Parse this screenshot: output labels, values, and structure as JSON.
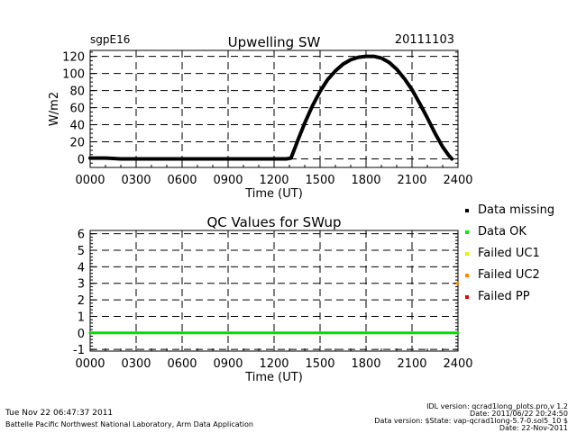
{
  "chart_data": [
    {
      "type": "line",
      "site_label": "sgpE16",
      "title": "Upwelling SW",
      "date_label": "20111103",
      "xlabel": "Time (UT)",
      "ylabel": "W/m2",
      "xlim": [
        0,
        24
      ],
      "ylim": [
        -10,
        127
      ],
      "x_ticks": [
        "0000",
        "0300",
        "0600",
        "0900",
        "1200",
        "1500",
        "1800",
        "2100",
        "2400"
      ],
      "y_ticks": [
        "0",
        "20",
        "40",
        "60",
        "80",
        "100",
        "120"
      ],
      "grid": true,
      "series": [
        {
          "color": "#000000",
          "points": [
            [
              0.0,
              1
            ],
            [
              1.0,
              1
            ],
            [
              2.0,
              0
            ],
            [
              4.0,
              0
            ],
            [
              6.0,
              0
            ],
            [
              8.0,
              0
            ],
            [
              10.0,
              0
            ],
            [
              12.0,
              0
            ],
            [
              12.8,
              0
            ],
            [
              13.1,
              1
            ],
            [
              13.3,
              10
            ],
            [
              13.6,
              24
            ],
            [
              14.0,
              42
            ],
            [
              14.5,
              62
            ],
            [
              15.0,
              79
            ],
            [
              15.5,
              93
            ],
            [
              16.0,
              103
            ],
            [
              16.5,
              111
            ],
            [
              17.0,
              116
            ],
            [
              17.5,
              119
            ],
            [
              18.0,
              120
            ],
            [
              18.5,
              120
            ],
            [
              19.0,
              118
            ],
            [
              19.5,
              113
            ],
            [
              20.0,
              105
            ],
            [
              20.5,
              94
            ],
            [
              21.0,
              81
            ],
            [
              21.5,
              65
            ],
            [
              22.0,
              48
            ],
            [
              22.5,
              30
            ],
            [
              23.0,
              14
            ],
            [
              23.4,
              4
            ],
            [
              23.6,
              0
            ]
          ]
        }
      ]
    },
    {
      "type": "line",
      "title": "QC Values for SWup",
      "xlabel": "Time (UT)",
      "xlim": [
        0,
        24
      ],
      "ylim": [
        -1.1,
        6.2
      ],
      "x_ticks": [
        "0000",
        "0300",
        "0600",
        "0900",
        "1200",
        "1500",
        "1800",
        "2100",
        "2400"
      ],
      "y_ticks": [
        "-1",
        "0",
        "1",
        "2",
        "3",
        "4",
        "5",
        "6"
      ],
      "grid": true,
      "series": [
        {
          "color": "#00dd00",
          "points": [
            [
              0,
              0
            ],
            [
              24,
              0
            ]
          ]
        }
      ],
      "markers": [
        {
          "color": "#ff8800",
          "points": [
            [
              24,
              3
            ]
          ]
        }
      ],
      "legend": [
        {
          "label": "Data missing",
          "color": "#000000"
        },
        {
          "label": "Data OK",
          "color": "#00ee00"
        },
        {
          "label": "Failed UC1",
          "color": "#eeee00"
        },
        {
          "label": "Failed UC2",
          "color": "#ff8800"
        },
        {
          "label": "Failed PP",
          "color": "#ee0000"
        }
      ]
    }
  ],
  "footer": {
    "timestamp": "Tue Nov 22 06:47:37 2011",
    "lab": "Battelle Pacific Northwest National Laboratory, Arm Data Application",
    "idl_version": "IDL version: qcrad1long_plots.pro,v 1.2",
    "version_date": "Date: 2011/06/22 20:24:50",
    "data_version": "Data version: $State: vap-qcrad1long-5.7-0.sol5_10 $",
    "data_date": "Date: 22-Nov-2011"
  }
}
